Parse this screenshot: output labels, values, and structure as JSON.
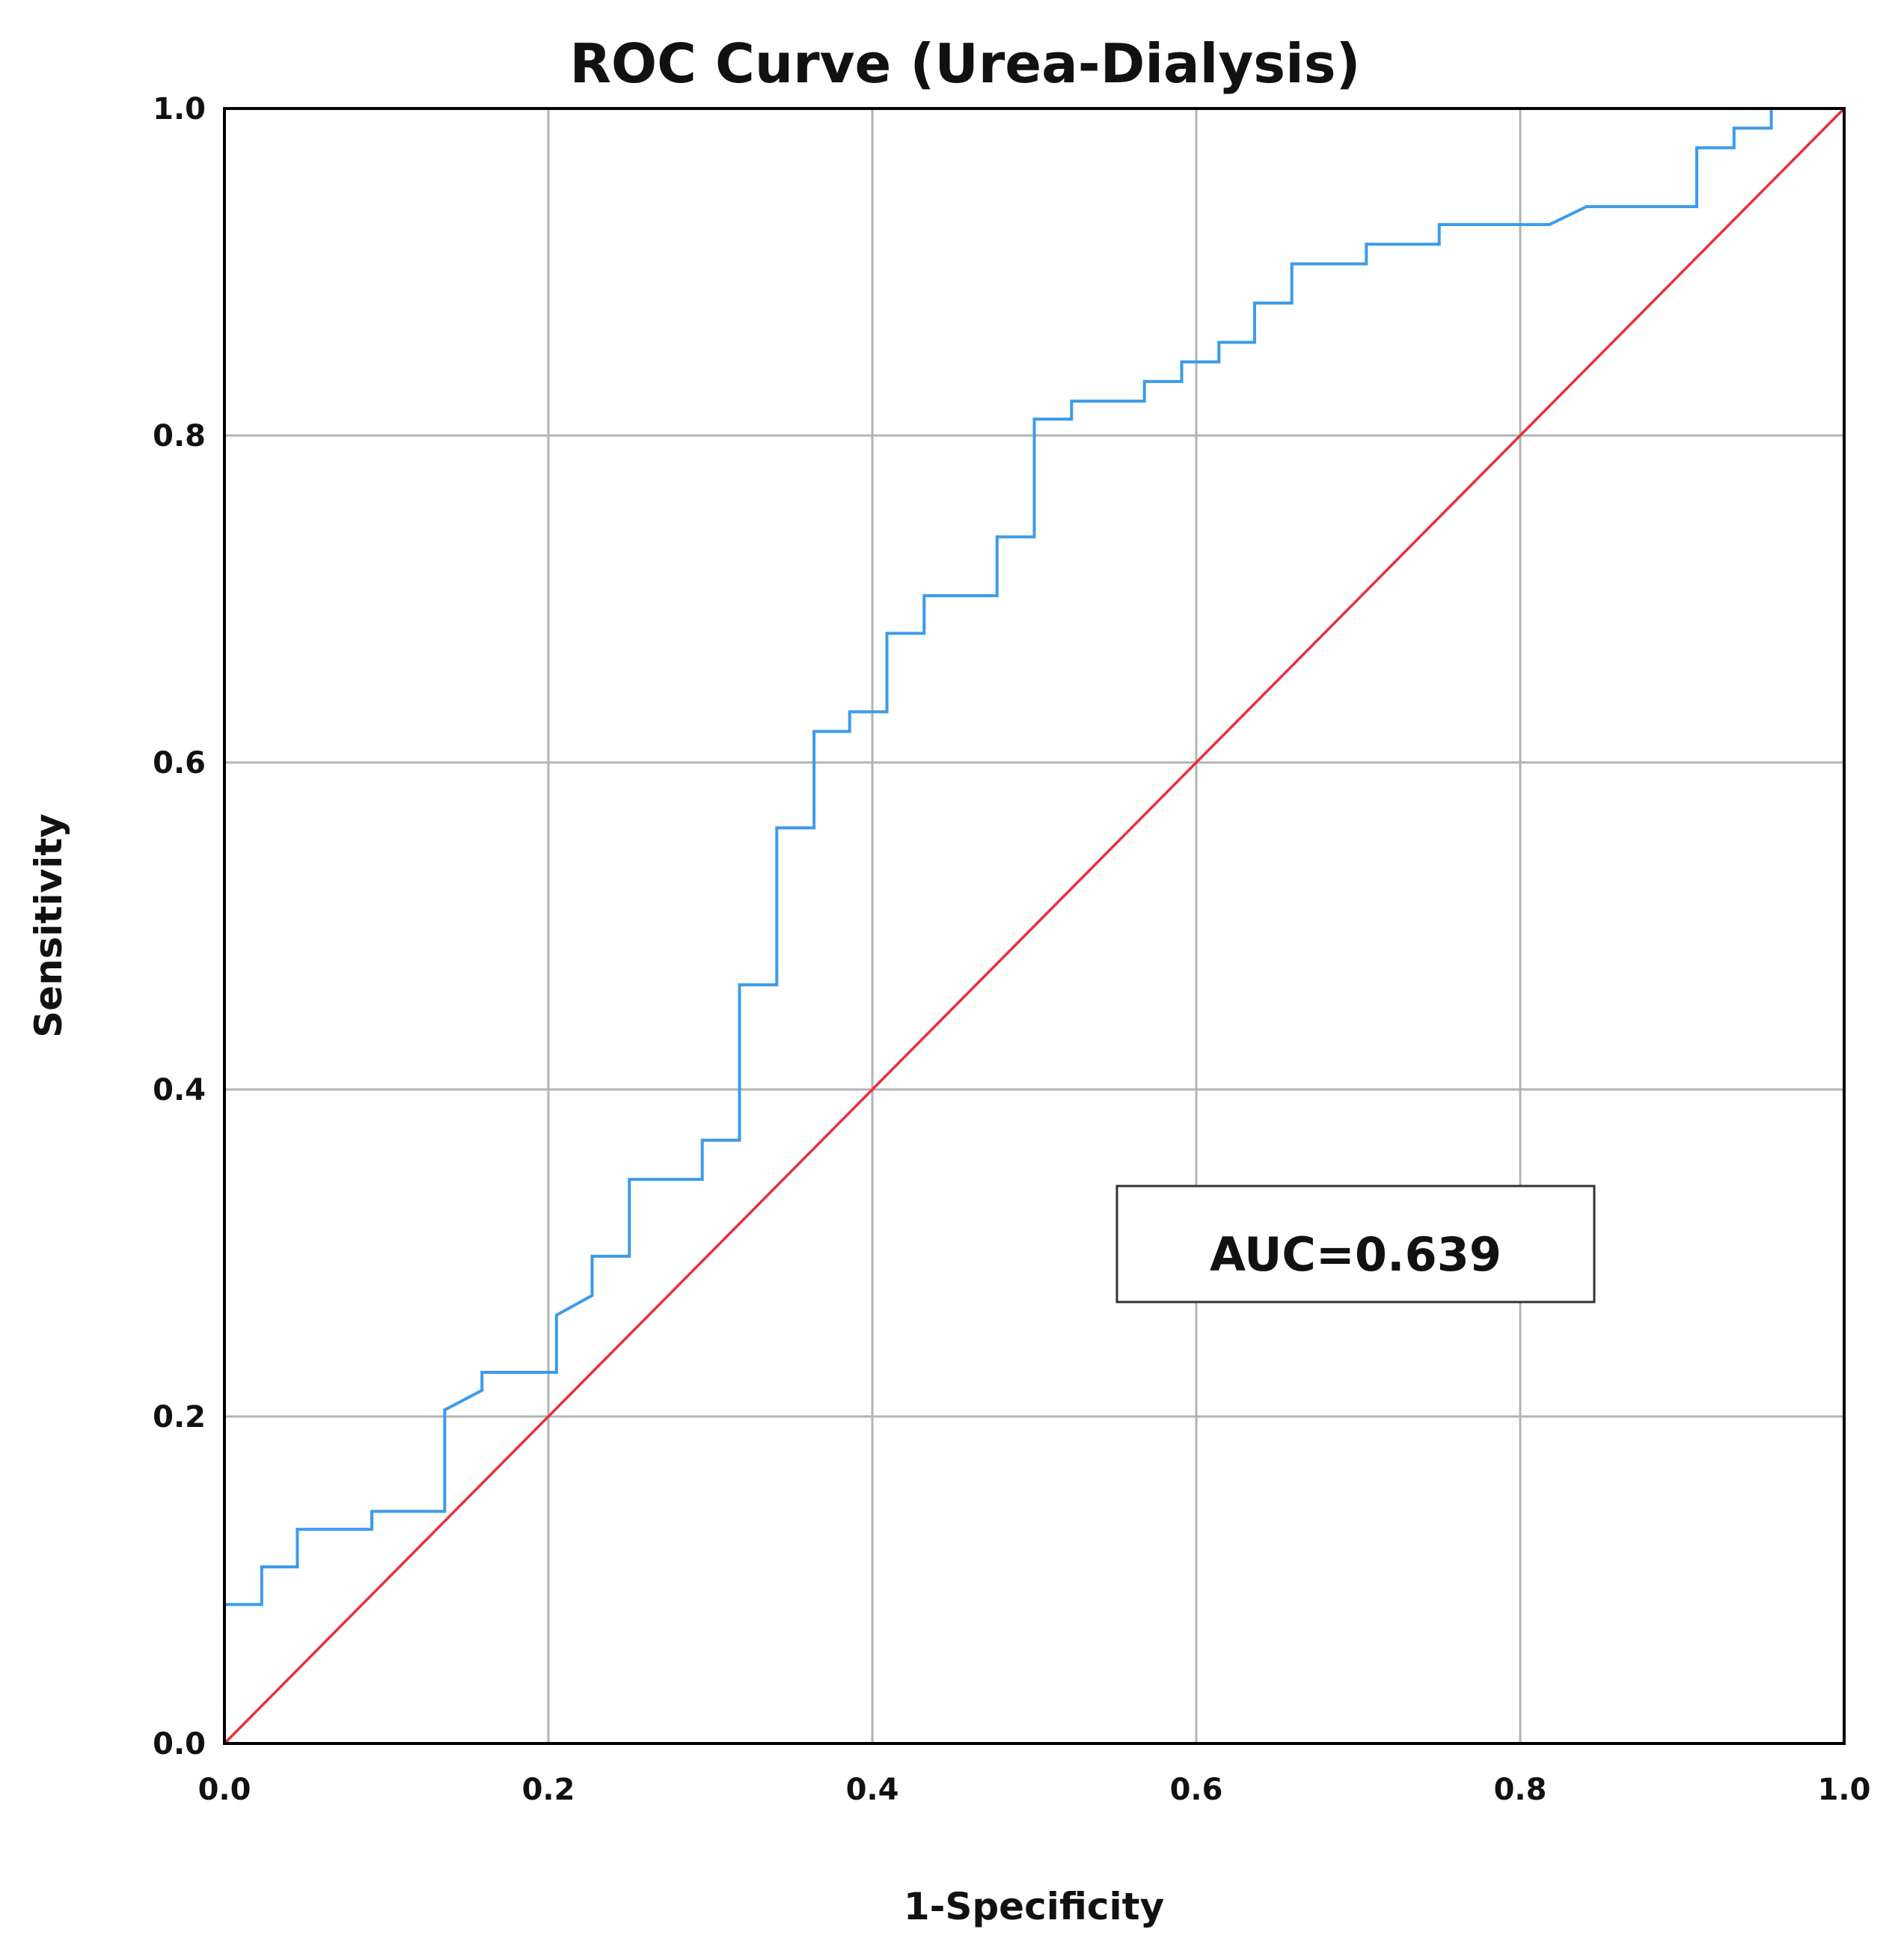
{
  "colors": {
    "roc_curve": "#3d9be9",
    "reference_line": "#e8303a",
    "grid": "#b3b3b3",
    "frame": "#000000",
    "text": "#111111"
  },
  "chart_data": {
    "type": "line",
    "title": "ROC Curve (Urea-Dialysis)",
    "xlabel": "1-Specificity",
    "ylabel": "Sensitivity",
    "xlim": [
      0,
      1
    ],
    "ylim": [
      0,
      1
    ],
    "grid": true,
    "x_ticks": [
      "0.0",
      "0.2",
      "0.4",
      "0.6",
      "0.8",
      "1.0"
    ],
    "y_ticks": [
      "0.0",
      "0.2",
      "0.4",
      "0.6",
      "0.8",
      "1.0"
    ],
    "annotation": "AUC=0.639",
    "series": [
      {
        "name": "ROC curve",
        "points": [
          [
            0.0,
            0.0
          ],
          [
            0.0,
            0.085
          ],
          [
            0.023,
            0.085
          ],
          [
            0.023,
            0.108
          ],
          [
            0.045,
            0.108
          ],
          [
            0.045,
            0.131
          ],
          [
            0.091,
            0.131
          ],
          [
            0.091,
            0.142
          ],
          [
            0.136,
            0.142
          ],
          [
            0.136,
            0.204
          ],
          [
            0.159,
            0.216
          ],
          [
            0.159,
            0.227
          ],
          [
            0.205,
            0.227
          ],
          [
            0.205,
            0.262
          ],
          [
            0.227,
            0.274
          ],
          [
            0.227,
            0.298
          ],
          [
            0.25,
            0.298
          ],
          [
            0.25,
            0.345
          ],
          [
            0.295,
            0.345
          ],
          [
            0.295,
            0.369
          ],
          [
            0.318,
            0.369
          ],
          [
            0.318,
            0.464
          ],
          [
            0.341,
            0.464
          ],
          [
            0.341,
            0.56
          ],
          [
            0.364,
            0.56
          ],
          [
            0.364,
            0.619
          ],
          [
            0.386,
            0.619
          ],
          [
            0.386,
            0.631
          ],
          [
            0.409,
            0.631
          ],
          [
            0.409,
            0.679
          ],
          [
            0.432,
            0.679
          ],
          [
            0.432,
            0.702
          ],
          [
            0.477,
            0.702
          ],
          [
            0.477,
            0.738
          ],
          [
            0.5,
            0.738
          ],
          [
            0.5,
            0.81
          ],
          [
            0.523,
            0.81
          ],
          [
            0.523,
            0.821
          ],
          [
            0.568,
            0.821
          ],
          [
            0.568,
            0.833
          ],
          [
            0.591,
            0.833
          ],
          [
            0.591,
            0.845
          ],
          [
            0.614,
            0.845
          ],
          [
            0.614,
            0.857
          ],
          [
            0.636,
            0.857
          ],
          [
            0.636,
            0.881
          ],
          [
            0.659,
            0.881
          ],
          [
            0.659,
            0.905
          ],
          [
            0.705,
            0.905
          ],
          [
            0.705,
            0.917
          ],
          [
            0.75,
            0.917
          ],
          [
            0.75,
            0.929
          ],
          [
            0.818,
            0.929
          ],
          [
            0.841,
            0.94
          ],
          [
            0.909,
            0.94
          ],
          [
            0.909,
            0.976
          ],
          [
            0.932,
            0.976
          ],
          [
            0.932,
            0.988
          ],
          [
            0.955,
            0.988
          ],
          [
            0.955,
            1.0
          ],
          [
            1.0,
            1.0
          ]
        ]
      },
      {
        "name": "Reference line",
        "points": [
          [
            0.0,
            0.0
          ],
          [
            1.0,
            1.0
          ]
        ]
      }
    ]
  }
}
